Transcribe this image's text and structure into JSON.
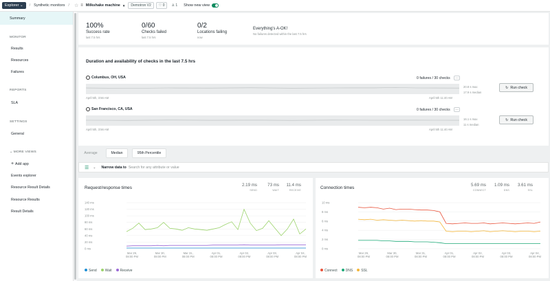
{
  "topbar": {
    "explorer_label": "Explorer",
    "crumb_sep": "/",
    "crumb": "Synthetic monitors",
    "entity_name": "Milkshake machine",
    "account": "Demotron V2",
    "tag_count": "0",
    "user_count": "1",
    "show_new_view": "Show new view",
    "toggle_on": true
  },
  "sidebar": {
    "summary": "Summary",
    "monitor_heading": "MONITOR",
    "monitor_items": [
      "Results",
      "Resources",
      "Failures"
    ],
    "reports_heading": "REPORTS",
    "reports_items": [
      "SLA"
    ],
    "settings_heading": "SETTINGS",
    "settings_items": [
      "General"
    ],
    "more_views_heading": "MORE VIEWS",
    "add_app": "Add app",
    "more_items": [
      "Events explorer",
      "Resource Result Details",
      "Resource Results",
      "Result Details"
    ]
  },
  "kpis": [
    {
      "value": "100%",
      "label": "Success rate",
      "sub": "last 7.5 hrs"
    },
    {
      "value": "0/60",
      "label": "Checks failed",
      "sub": "last 7.5 hrs"
    },
    {
      "value": "0/2",
      "label": "Locations failing",
      "sub": "now"
    },
    {
      "value": "",
      "label": "Everything's A-OK!",
      "sub": "No failures detected within the last 7.5 hrs"
    }
  ],
  "availability": {
    "title": "Duration and availability of checks in the last 7.5 hrs",
    "locations": [
      {
        "name": "Columbus, OH, USA",
        "failures": "0 failures / 30 checks",
        "start": "April 5th, 3:56 AM",
        "end": "April 5th 11:40 AM",
        "max": "20.8 s max",
        "median": "17.9 s median",
        "run_label": "Run check"
      },
      {
        "name": "San Francisco, CA, USA",
        "failures": "0 failures / 30 checks",
        "start": "April 5th, 3:56 AM",
        "end": "April 5th 11:40 AM",
        "max": "16.1 s max",
        "median": "11 s median",
        "run_label": "Run check"
      }
    ]
  },
  "tabs": [
    {
      "label": "Average",
      "active": false
    },
    {
      "label": "Median",
      "active": true
    },
    {
      "label": "95th Percentile",
      "active": false
    }
  ],
  "filter": {
    "label": "Narrow data to",
    "placeholder": "Search for any attribute or value"
  },
  "colors": {
    "send": "#1f8fd6",
    "wait": "#9bd36b",
    "receive": "#9c6ad6",
    "connect": "#e8543c",
    "dns": "#1ca977",
    "ssl": "#f4b63a",
    "accent": "#0c8b5f"
  },
  "request_chart": {
    "title": "Request/response times",
    "stats": [
      {
        "value": "2.19 ms",
        "label": "SEND"
      },
      {
        "value": "73 ms",
        "label": "WAIT"
      },
      {
        "value": "11.4 ms",
        "label": "RECEIVE"
      }
    ],
    "legend": [
      "Send",
      "Wait",
      "Receive"
    ]
  },
  "connection_chart": {
    "title": "Connection times",
    "stats": [
      {
        "value": "5.69 ms",
        "label": "CONNECT"
      },
      {
        "value": "1.09 ms",
        "label": "DNS"
      },
      {
        "value": "3.61 ms",
        "label": "SSL"
      }
    ],
    "legend": [
      "Connect",
      "DNS",
      "SSL"
    ]
  },
  "chart_data": [
    {
      "type": "line",
      "title": "Request/response times",
      "ylim": [
        0,
        140
      ],
      "yticks": [
        "140 ms",
        "120 ms",
        "100 ms",
        "80 ms",
        "60 ms",
        "40 ms",
        "20 ms",
        "0 ms"
      ],
      "xticks": [
        "Mar 29,\n08:00 PM",
        "Mar 30,\n08:00 PM",
        "Mar 31,\n08:00 PM",
        "Apr 01,\n08:00 PM",
        "Apr 02,\n08:00 PM",
        "Apr 03,\n08:00 PM",
        "Apr 04,\n08:00 PM"
      ],
      "series": [
        {
          "name": "Send",
          "values": [
            2,
            2,
            2,
            2,
            2,
            2,
            2,
            2,
            2,
            2,
            2,
            2,
            2,
            2,
            2,
            2,
            2,
            2,
            2,
            2,
            2,
            2,
            2,
            2,
            2,
            2,
            2,
            2,
            2,
            2
          ]
        },
        {
          "name": "Wait",
          "values": [
            52,
            62,
            78,
            58,
            60,
            64,
            80,
            62,
            60,
            56,
            64,
            60,
            58,
            56,
            60,
            64,
            74,
            82,
            58,
            120,
            78,
            55,
            62,
            85,
            62,
            40,
            60,
            90,
            45,
            60
          ]
        },
        {
          "name": "Receive",
          "values": [
            8,
            9,
            9,
            9,
            9,
            10,
            9,
            10,
            10,
            10,
            10,
            10,
            10,
            10,
            11,
            11,
            11,
            11,
            11,
            12,
            11,
            11,
            11,
            11,
            11,
            12,
            12,
            12,
            12,
            12
          ]
        }
      ]
    },
    {
      "type": "line",
      "title": "Connection times",
      "ylim": [
        0,
        10
      ],
      "yticks": [
        "10 ms",
        "8 ms",
        "6 ms",
        "4 ms",
        "2 ms",
        "0 ms"
      ],
      "xticks": [
        "Mar 29,\n08:00 PM",
        "Mar 30,\n08:00 PM",
        "Mar 31,\n08:00 PM",
        "Apr 01,\n08:00 PM",
        "Apr 02,\n08:00 PM",
        "Apr 03,\n08:00 PM",
        "Apr 04,\n08:00 PM"
      ],
      "series": [
        {
          "name": "Connect",
          "values": [
            9.0,
            8.9,
            9.0,
            8.9,
            8.6,
            8.8,
            8.5,
            8.6,
            8.6,
            8.5,
            8.4,
            8.4,
            8.3,
            8.0,
            5.5,
            5.4,
            5.5,
            5.6,
            5.5,
            5.5,
            5.6,
            5.4,
            5.5,
            5.6,
            5.5,
            5.4,
            5.5,
            5.6,
            5.5,
            5.8
          ]
        },
        {
          "name": "DNS",
          "values": [
            1.8,
            1.8,
            1.8,
            1.8,
            1.7,
            1.7,
            1.6,
            1.6,
            1.6,
            1.5,
            1.5,
            1.5,
            1.4,
            1.3,
            1.1,
            1.1,
            1.1,
            1.1,
            1.1,
            1.1,
            1.1,
            1.1,
            1.1,
            1.1,
            1.1,
            1.1,
            1.1,
            1.1,
            1.1,
            1.1
          ]
        },
        {
          "name": "SSL",
          "values": [
            6.4,
            6.3,
            6.4,
            6.2,
            6.3,
            6.2,
            6.1,
            6.2,
            6.1,
            6.0,
            6.1,
            6.0,
            6.0,
            5.8,
            3.8,
            3.7,
            3.8,
            3.8,
            3.7,
            3.8,
            3.9,
            3.7,
            3.8,
            3.9,
            3.8,
            3.7,
            3.8,
            3.8,
            3.7,
            3.8
          ]
        }
      ]
    }
  ]
}
